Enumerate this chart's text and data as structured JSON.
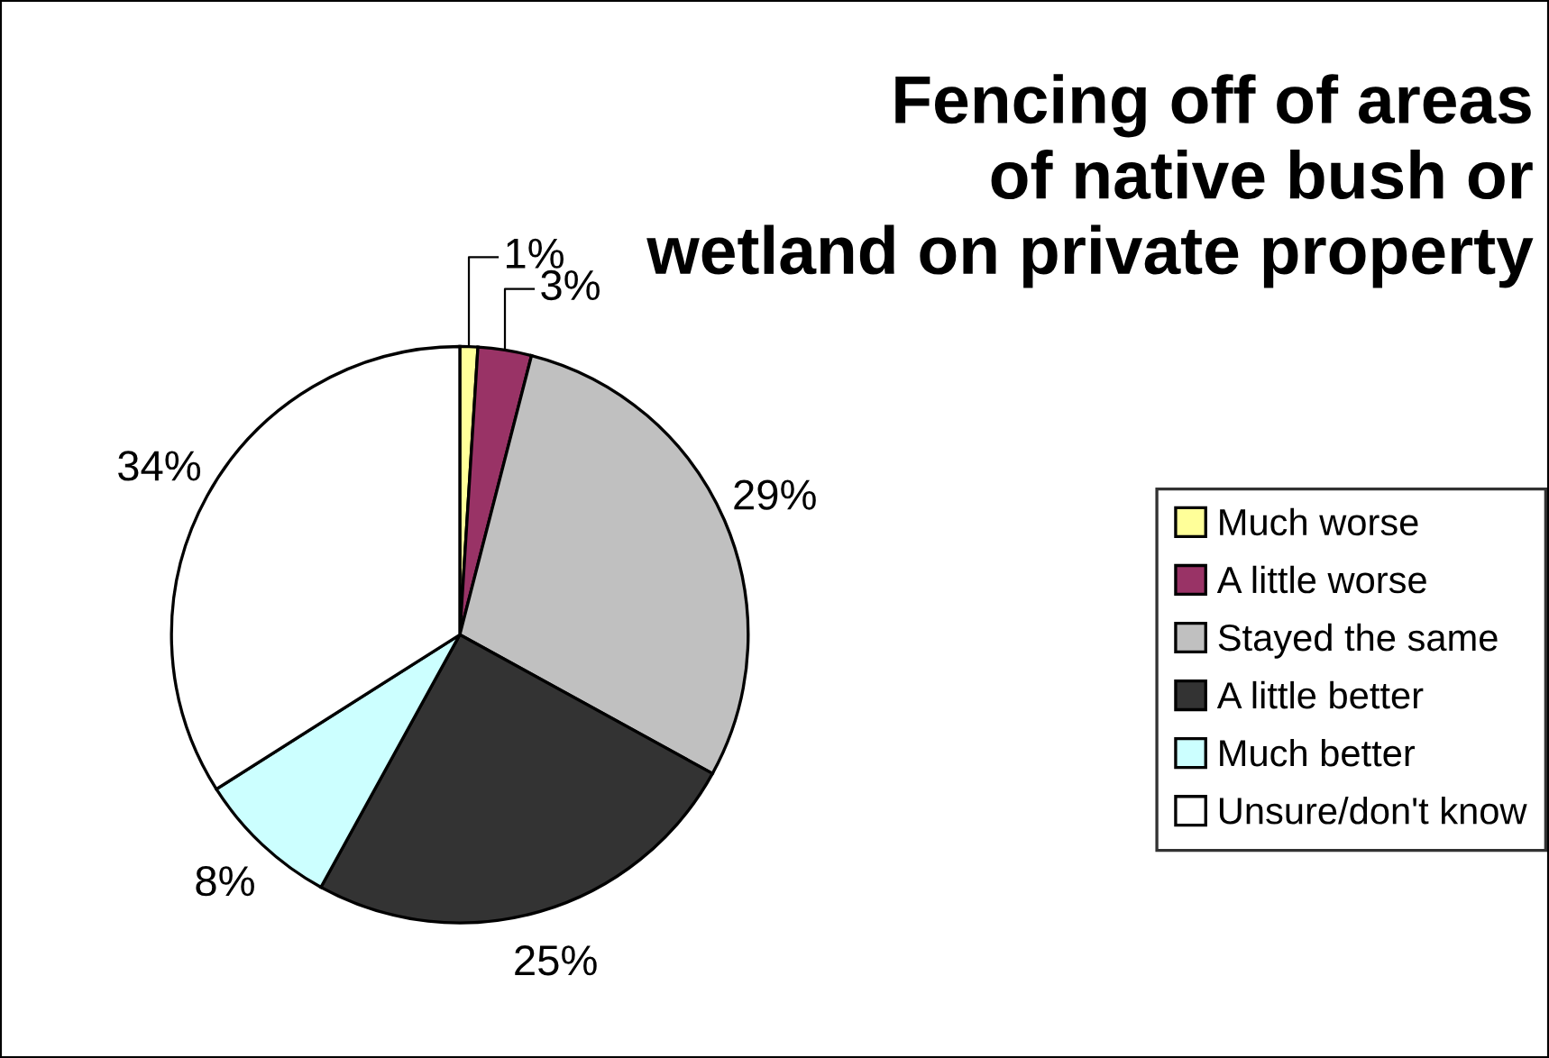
{
  "chart_data": {
    "type": "pie",
    "title": "Fencing off of areas\nof native bush or\nwetland on private property",
    "categories": [
      "Much worse",
      "A little worse",
      "Stayed the same",
      "A little better",
      "Much better",
      "Unsure/don't know"
    ],
    "values": [
      1,
      3,
      29,
      25,
      8,
      34
    ],
    "value_labels": [
      "1%",
      "3%",
      "29%",
      "25%",
      "8%",
      "34%"
    ],
    "colors": [
      "#ffff99",
      "#993366",
      "#c0c0c0",
      "#333333",
      "#ccffff",
      "#ffffff"
    ],
    "legend": "right"
  }
}
